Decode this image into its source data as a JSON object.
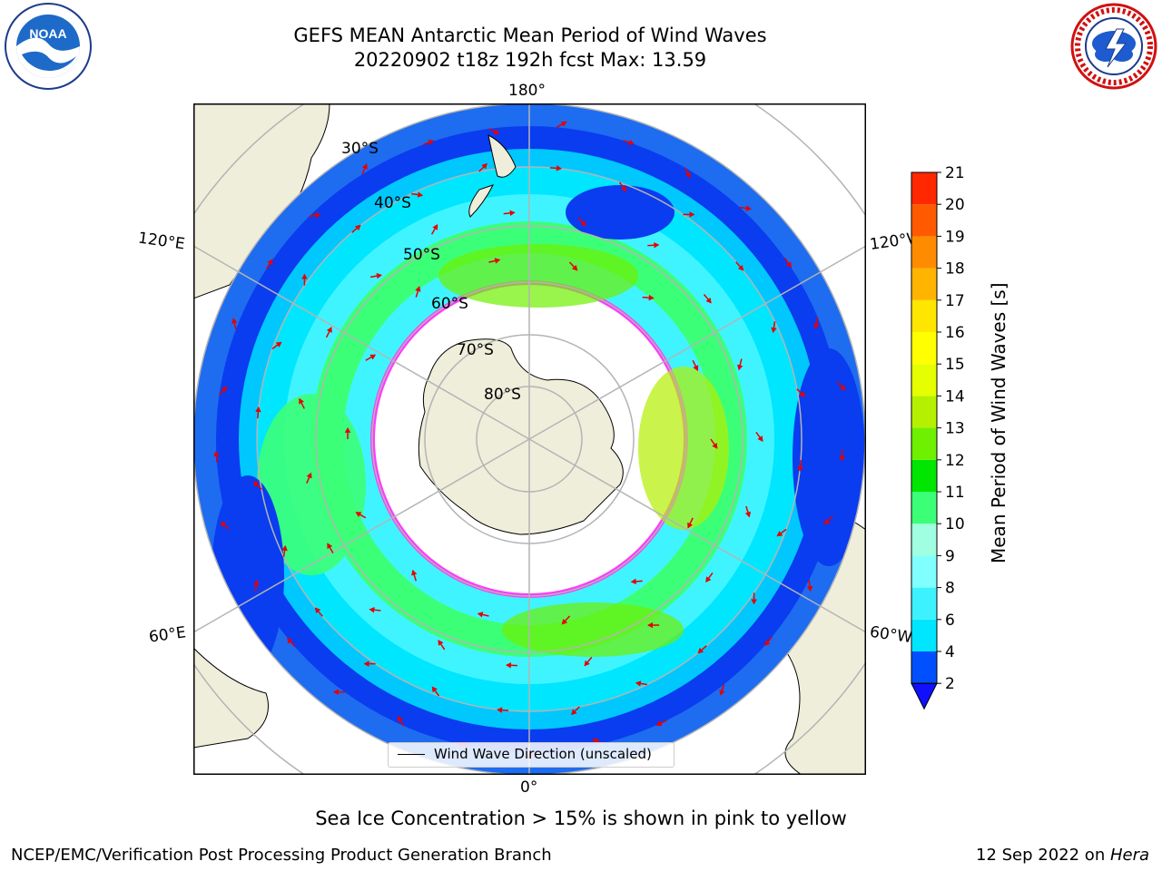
{
  "title": {
    "line1": "GEFS MEAN Antarctic Mean Period of Wind Waves",
    "line2": "20220902 t18z 192h fcst   Max: 13.59"
  },
  "map": {
    "lon_labels": {
      "top": "180°",
      "bottom": "0°",
      "upper_left": "120°E",
      "upper_right": "120°W",
      "lower_left": "60°E",
      "lower_right": "60°W"
    },
    "lat_labels": [
      "30°S",
      "40°S",
      "50°S",
      "60°S",
      "70°S",
      "80°S"
    ],
    "legend_label": "Wind Wave Direction (unscaled)"
  },
  "colorbar": {
    "label": "Mean Period of Wind Waves [s]",
    "ticks": [
      "2",
      "4",
      "6",
      "8",
      "9",
      "10",
      "11",
      "12",
      "13",
      "14",
      "15",
      "16",
      "17",
      "18",
      "19",
      "20",
      "21"
    ],
    "colors": [
      "#0050ff",
      "#00e6ff",
      "#3cf2ff",
      "#80ffff",
      "#a0ffe0",
      "#3cff78",
      "#00e600",
      "#6ef000",
      "#b4f000",
      "#e6ff00",
      "#ffff00",
      "#ffe600",
      "#ffb400",
      "#ff8c00",
      "#ff5a00",
      "#ff2800"
    ],
    "extend_color": "#1010ff"
  },
  "caption": "Sea Ice Concentration > 15% is shown in pink to yellow",
  "footer": {
    "left": "NCEP/EMC/Verification Post Processing Product Generation Branch",
    "right_prefix": "12 Sep 2022 on ",
    "right_italic": "Hera"
  },
  "logos": {
    "noaa_text": "NOAA",
    "nws_text": "NATIONAL WEATHER SERVICE"
  },
  "colors": {
    "land": "#efeedb",
    "ice_edge": "#ff3cff",
    "arrow": "#ee0000"
  }
}
